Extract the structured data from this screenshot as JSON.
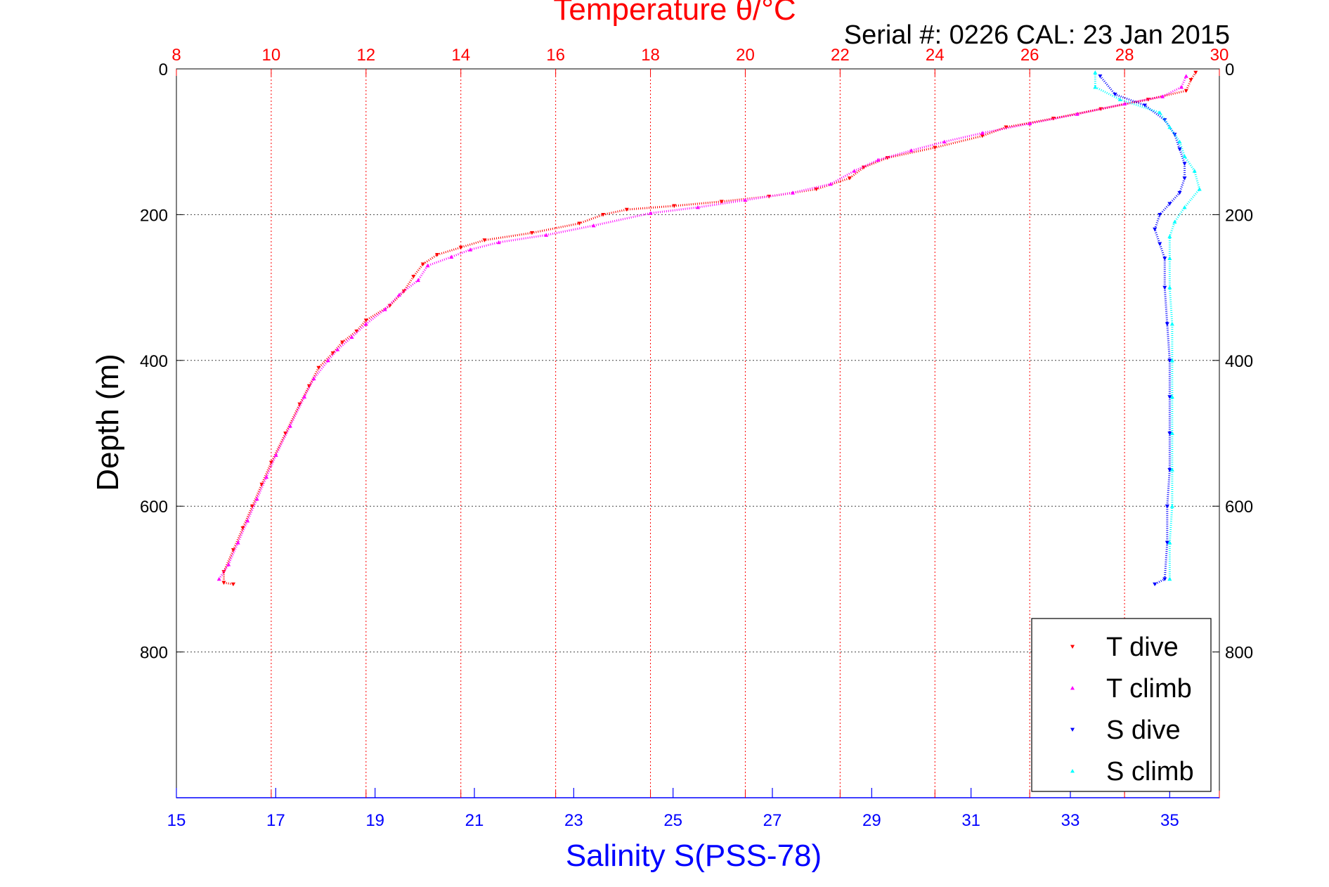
{
  "chart_data": {
    "type": "scatter",
    "title": "Temperature θ/°C",
    "subtitle": "Serial #: 0226  CAL: 23 Jan 2015",
    "ylabel": "Depth (m)",
    "xlabel": "Salinity S(PSS-78)",
    "temperature_axis": {
      "range": [
        8,
        30
      ],
      "ticks": [
        "8",
        "10",
        "12",
        "14",
        "16",
        "18",
        "20",
        "22",
        "24",
        "26",
        "28",
        "30"
      ],
      "color": "#ff0000"
    },
    "salinity_axis": {
      "range": [
        15,
        36
      ],
      "ticks": [
        "15",
        "17",
        "19",
        "21",
        "23",
        "25",
        "27",
        "29",
        "31",
        "33",
        "35"
      ],
      "color": "#0000ff"
    },
    "depth_axis": {
      "range": [
        0,
        1000
      ],
      "reversed": true,
      "ticks": [
        "0",
        "200",
        "400",
        "600",
        "800"
      ]
    },
    "grid": true,
    "legend_position": "bottom-right",
    "series": [
      {
        "name": "T dive",
        "axis": "temperature",
        "color": "#ff0000",
        "marker": "triangle-down",
        "points": [
          [
            29.5,
            5
          ],
          [
            29.4,
            15
          ],
          [
            29.3,
            30
          ],
          [
            28.5,
            42
          ],
          [
            27.5,
            55
          ],
          [
            26.5,
            68
          ],
          [
            25.5,
            80
          ],
          [
            25.0,
            92
          ],
          [
            24.0,
            108
          ],
          [
            23.0,
            122
          ],
          [
            22.5,
            135
          ],
          [
            22.2,
            150
          ],
          [
            21.5,
            165
          ],
          [
            20.5,
            175
          ],
          [
            19.5,
            182
          ],
          [
            18.5,
            188
          ],
          [
            17.5,
            193
          ],
          [
            17.0,
            200
          ],
          [
            16.5,
            212
          ],
          [
            15.5,
            225
          ],
          [
            14.5,
            235
          ],
          [
            14.0,
            245
          ],
          [
            13.5,
            255
          ],
          [
            13.2,
            268
          ],
          [
            13.0,
            285
          ],
          [
            12.8,
            305
          ],
          [
            12.5,
            325
          ],
          [
            12.0,
            345
          ],
          [
            11.8,
            360
          ],
          [
            11.5,
            375
          ],
          [
            11.3,
            390
          ],
          [
            11.0,
            410
          ],
          [
            10.8,
            435
          ],
          [
            10.6,
            460
          ],
          [
            10.3,
            500
          ],
          [
            10.0,
            540
          ],
          [
            9.8,
            570
          ],
          [
            9.6,
            600
          ],
          [
            9.4,
            630
          ],
          [
            9.2,
            660
          ],
          [
            9.0,
            690
          ],
          [
            9.0,
            705
          ],
          [
            9.2,
            707
          ]
        ]
      },
      {
        "name": "T climb",
        "axis": "temperature",
        "color": "#ff00ff",
        "marker": "triangle-up",
        "points": [
          [
            29.3,
            10
          ],
          [
            29.2,
            25
          ],
          [
            28.8,
            38
          ],
          [
            28.0,
            48
          ],
          [
            27.0,
            62
          ],
          [
            26.0,
            75
          ],
          [
            25.0,
            88
          ],
          [
            24.2,
            100
          ],
          [
            23.5,
            112
          ],
          [
            22.8,
            125
          ],
          [
            22.3,
            140
          ],
          [
            21.8,
            158
          ],
          [
            21.0,
            170
          ],
          [
            20.0,
            180
          ],
          [
            19.0,
            190
          ],
          [
            18.0,
            198
          ],
          [
            16.8,
            215
          ],
          [
            15.8,
            228
          ],
          [
            14.8,
            238
          ],
          [
            14.2,
            248
          ],
          [
            13.8,
            258
          ],
          [
            13.3,
            270
          ],
          [
            13.1,
            290
          ],
          [
            12.7,
            310
          ],
          [
            12.4,
            330
          ],
          [
            12.0,
            350
          ],
          [
            11.7,
            368
          ],
          [
            11.4,
            385
          ],
          [
            11.2,
            400
          ],
          [
            10.9,
            425
          ],
          [
            10.7,
            450
          ],
          [
            10.4,
            490
          ],
          [
            10.1,
            530
          ],
          [
            9.9,
            560
          ],
          [
            9.7,
            590
          ],
          [
            9.5,
            620
          ],
          [
            9.3,
            650
          ],
          [
            9.1,
            680
          ],
          [
            8.9,
            700
          ]
        ]
      },
      {
        "name": "S dive",
        "axis": "salinity",
        "color": "#0000ff",
        "marker": "triangle-down",
        "points": [
          [
            33.6,
            10
          ],
          [
            33.9,
            35
          ],
          [
            34.5,
            50
          ],
          [
            34.9,
            70
          ],
          [
            35.1,
            90
          ],
          [
            35.2,
            110
          ],
          [
            35.3,
            130
          ],
          [
            35.3,
            150
          ],
          [
            35.2,
            170
          ],
          [
            35.0,
            185
          ],
          [
            34.8,
            200
          ],
          [
            34.7,
            220
          ],
          [
            34.8,
            240
          ],
          [
            34.9,
            260
          ],
          [
            34.9,
            300
          ],
          [
            34.95,
            350
          ],
          [
            35.0,
            400
          ],
          [
            35.0,
            450
          ],
          [
            35.0,
            500
          ],
          [
            35.0,
            550
          ],
          [
            34.95,
            600
          ],
          [
            34.95,
            650
          ],
          [
            34.9,
            700
          ],
          [
            34.7,
            707
          ]
        ]
      },
      {
        "name": "S climb",
        "axis": "salinity",
        "color": "#00ffff",
        "marker": "triangle-up",
        "points": [
          [
            33.5,
            5
          ],
          [
            33.5,
            25
          ],
          [
            34.0,
            42
          ],
          [
            34.8,
            60
          ],
          [
            35.0,
            80
          ],
          [
            35.2,
            100
          ],
          [
            35.3,
            120
          ],
          [
            35.5,
            140
          ],
          [
            35.6,
            165
          ],
          [
            35.3,
            190
          ],
          [
            35.1,
            210
          ],
          [
            35.0,
            230
          ],
          [
            35.0,
            260
          ],
          [
            35.0,
            300
          ],
          [
            35.05,
            350
          ],
          [
            35.05,
            400
          ],
          [
            35.05,
            450
          ],
          [
            35.05,
            500
          ],
          [
            35.05,
            550
          ],
          [
            35.05,
            600
          ],
          [
            35.0,
            650
          ],
          [
            35.0,
            700
          ]
        ]
      }
    ]
  }
}
